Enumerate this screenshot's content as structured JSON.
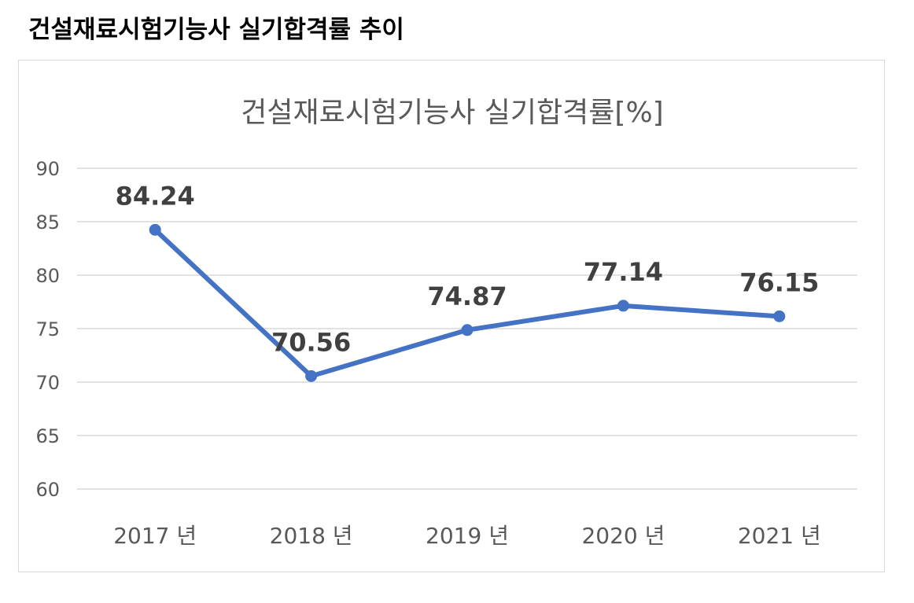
{
  "page": {
    "heading": "건설재료시험기능사 실기합격률 추이"
  },
  "chart_data": {
    "type": "line",
    "title": "건설재료시험기능사 실기합격률[%]",
    "categories": [
      "2017 년",
      "2018 년",
      "2019 년",
      "2020 년",
      "2021 년"
    ],
    "series": [
      {
        "values": [
          84.24,
          70.56,
          74.87,
          77.14,
          76.15
        ],
        "data_labels": [
          "84.24",
          "70.56",
          "74.87",
          "77.14",
          "76.15"
        ]
      }
    ],
    "ylim": [
      60,
      90
    ],
    "y_ticks": [
      "60",
      "65",
      "70",
      "75",
      "80",
      "85",
      "90"
    ],
    "grid": true,
    "legend": "none",
    "colors": {
      "line": "#4472c4",
      "grid": "#d9d9d9",
      "data_label": "#404040",
      "axis_text": "#595959"
    }
  }
}
